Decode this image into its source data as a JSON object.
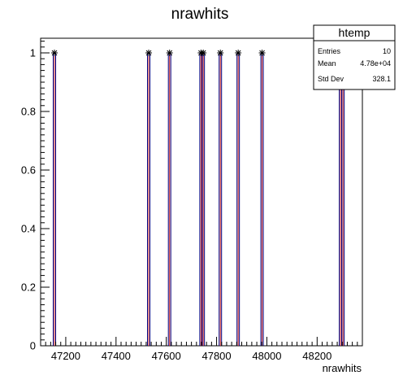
{
  "chart_data": {
    "type": "bar",
    "title": "nrawhits",
    "xlabel": "nrawhits",
    "ylabel": "",
    "xlim": [
      47100,
      48380
    ],
    "ylim": [
      0,
      1.05
    ],
    "xticks": [
      "47200",
      "47400",
      "47600",
      "47800",
      "48000",
      "48200"
    ],
    "yticks": [
      "0",
      "0.2",
      "0.4",
      "0.6",
      "0.8",
      "1"
    ],
    "series": [
      {
        "x": [
          47155,
          47530,
          47613,
          47738,
          47747,
          47815,
          47886,
          47981,
          48293,
          48303
        ],
        "values": [
          1,
          1,
          1,
          1,
          1,
          1,
          1,
          1,
          1,
          1
        ]
      }
    ],
    "grid": false,
    "stats": {
      "name": "htemp",
      "rows": [
        {
          "label": "Entries",
          "value": "10"
        },
        {
          "label": "Mean",
          "value": "4.78e+04"
        },
        {
          "label": "Std Dev",
          "value": "328.1"
        }
      ]
    }
  }
}
